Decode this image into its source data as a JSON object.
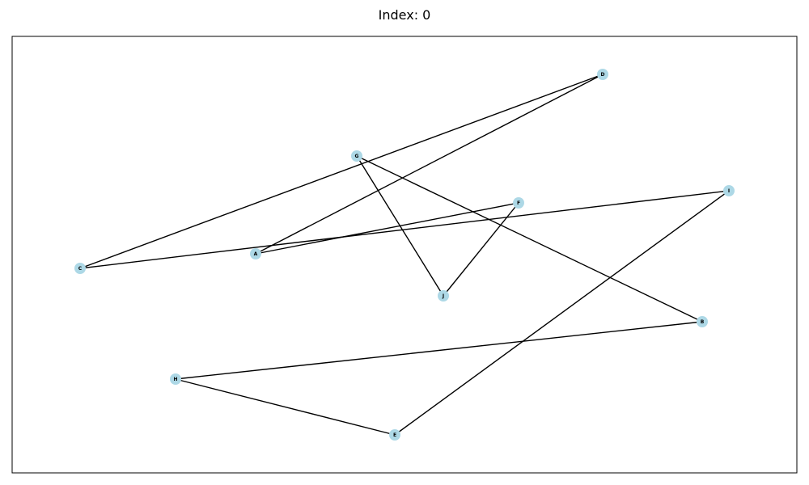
{
  "title": "Index: 0",
  "colors": {
    "node_fill": "#add8e6",
    "edge": "#000000",
    "frame": "#000000"
  },
  "graph": {
    "nodes": [
      {
        "id": "A",
        "label": "A"
      },
      {
        "id": "B",
        "label": "B"
      },
      {
        "id": "C",
        "label": "C"
      },
      {
        "id": "D",
        "label": "D"
      },
      {
        "id": "E",
        "label": "E"
      },
      {
        "id": "F",
        "label": "F"
      },
      {
        "id": "G",
        "label": "G"
      },
      {
        "id": "H",
        "label": "H"
      },
      {
        "id": "I",
        "label": "I"
      },
      {
        "id": "J",
        "label": "J"
      }
    ],
    "edges": [
      [
        "C",
        "D"
      ],
      [
        "C",
        "I"
      ],
      [
        "A",
        "D"
      ],
      [
        "A",
        "F"
      ],
      [
        "F",
        "J"
      ],
      [
        "G",
        "J"
      ],
      [
        "G",
        "B"
      ],
      [
        "B",
        "H"
      ],
      [
        "H",
        "E"
      ],
      [
        "E",
        "I"
      ]
    ]
  }
}
